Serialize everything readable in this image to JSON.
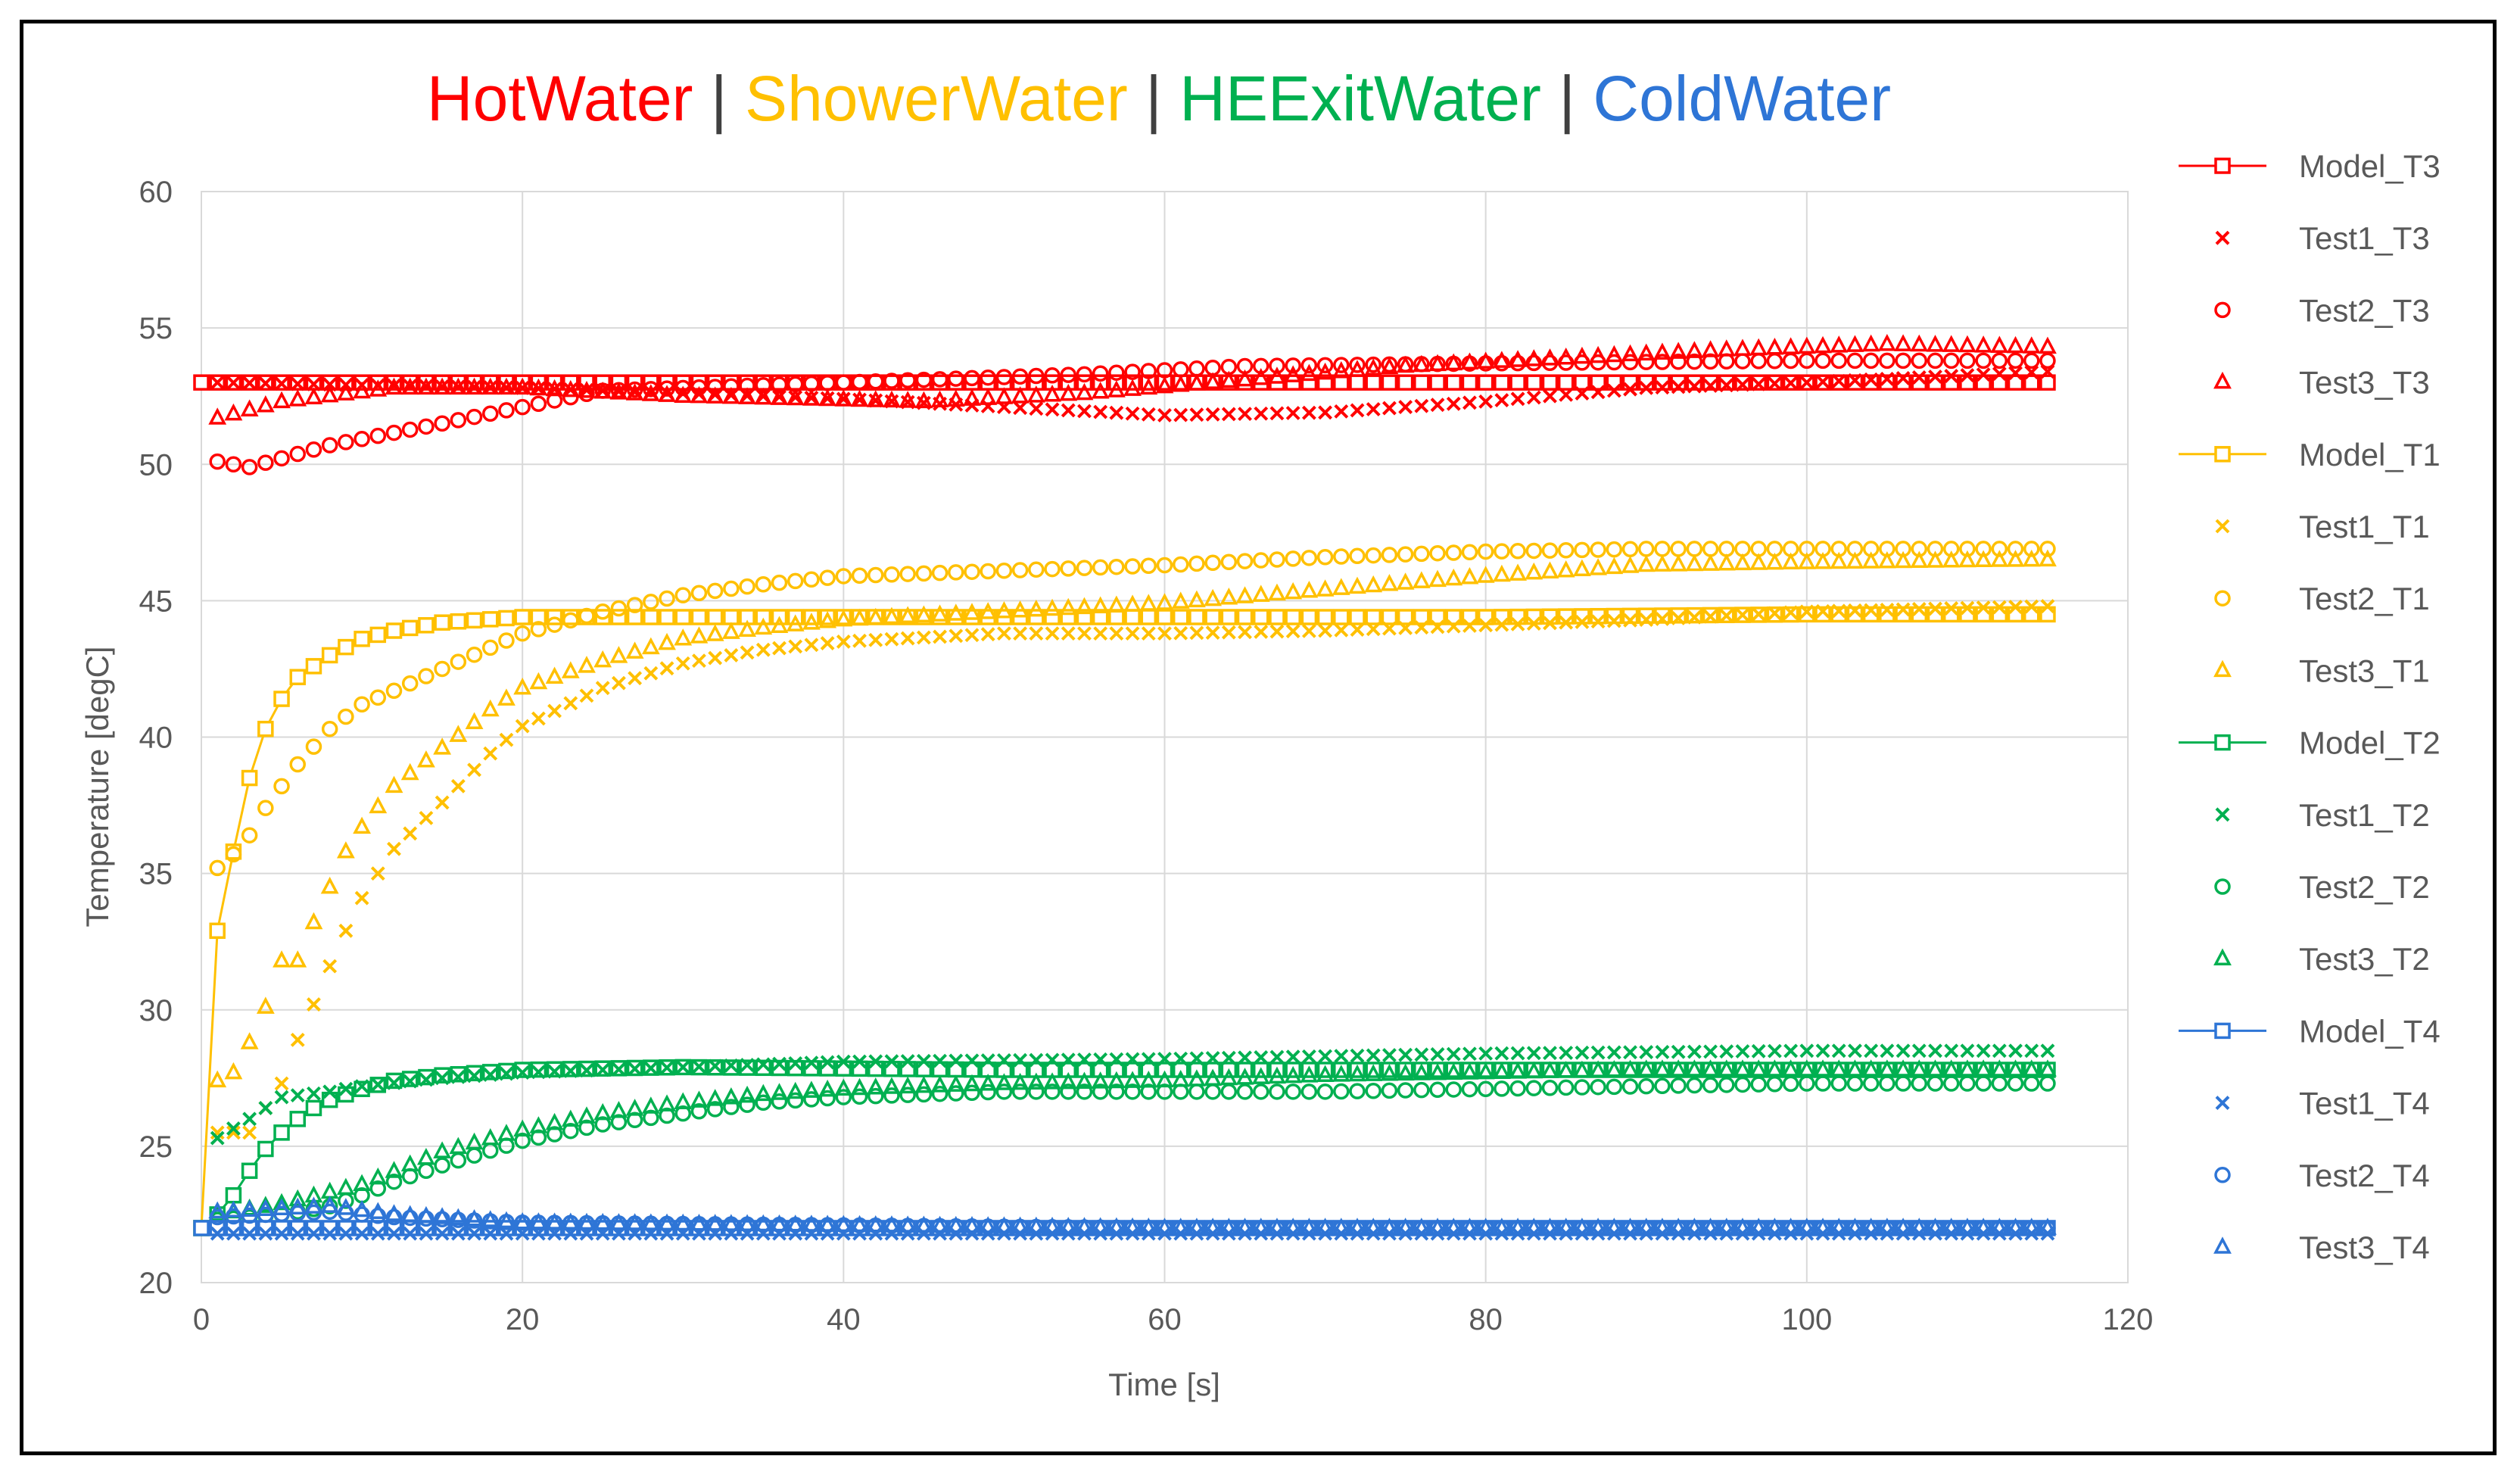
{
  "chart_data": {
    "type": "scatter",
    "title_parts": [
      {
        "text": "HotWater",
        "color": "#FF0000"
      },
      {
        "text": "ShowerWater",
        "color": "#FFC000"
      },
      {
        "text": "HEExitWater",
        "color": "#00B050"
      },
      {
        "text": "ColdWater",
        "color": "#2E75D6"
      }
    ],
    "title_separator": "|",
    "xlabel": "Time [s]",
    "ylabel": "Temperature [degC]",
    "xlim": [
      0,
      120
    ],
    "ylim": [
      20,
      60
    ],
    "xticks": [
      0,
      20,
      40,
      60,
      80,
      100,
      120
    ],
    "yticks": [
      20,
      25,
      30,
      35,
      40,
      45,
      50,
      55,
      60
    ],
    "grid": true,
    "legend_position": "right",
    "x_samples": {
      "start": 1,
      "end": 115,
      "step": 1
    },
    "series": [
      {
        "name": "Model_T3",
        "color": "#FF0000",
        "marker": "square",
        "line": true,
        "keypoints": [
          [
            0,
            53.0
          ],
          [
            20,
            53.0
          ],
          [
            60,
            53.0
          ],
          [
            115,
            53.0
          ]
        ]
      },
      {
        "name": "Test1_T3",
        "color": "#FF0000",
        "marker": "x",
        "line": false,
        "keypoints": [
          [
            1,
            53.0
          ],
          [
            20,
            52.8
          ],
          [
            40,
            52.4
          ],
          [
            50,
            52.1
          ],
          [
            60,
            51.8
          ],
          [
            70,
            51.9
          ],
          [
            80,
            52.3
          ],
          [
            90,
            52.8
          ],
          [
            100,
            53.0
          ],
          [
            115,
            53.4
          ]
        ]
      },
      {
        "name": "Test2_T3",
        "color": "#FF0000",
        "marker": "circle",
        "line": false,
        "keypoints": [
          [
            1,
            50.1
          ],
          [
            3,
            49.9
          ],
          [
            8,
            50.7
          ],
          [
            15,
            51.5
          ],
          [
            20,
            52.1
          ],
          [
            25,
            52.7
          ],
          [
            40,
            53.0
          ],
          [
            55,
            53.3
          ],
          [
            65,
            53.6
          ],
          [
            80,
            53.7
          ],
          [
            100,
            53.8
          ],
          [
            115,
            53.8
          ]
        ]
      },
      {
        "name": "Test3_T3",
        "color": "#FF0000",
        "marker": "triangle",
        "line": false,
        "keypoints": [
          [
            1,
            51.7
          ],
          [
            5,
            52.3
          ],
          [
            12,
            52.8
          ],
          [
            20,
            52.8
          ],
          [
            30,
            52.5
          ],
          [
            45,
            52.3
          ],
          [
            55,
            52.6
          ],
          [
            65,
            53.1
          ],
          [
            75,
            53.6
          ],
          [
            85,
            53.9
          ],
          [
            95,
            54.2
          ],
          [
            105,
            54.4
          ],
          [
            115,
            54.3
          ]
        ]
      },
      {
        "name": "Model_T1",
        "color": "#FFC000",
        "marker": "square",
        "line": true,
        "keypoints": [
          [
            0,
            22.0
          ],
          [
            1,
            32.9
          ],
          [
            2,
            35.8
          ],
          [
            3,
            38.5
          ],
          [
            4,
            40.3
          ],
          [
            5,
            41.4
          ],
          [
            6,
            42.2
          ],
          [
            8,
            43.0
          ],
          [
            10,
            43.6
          ],
          [
            12,
            43.9
          ],
          [
            15,
            44.2
          ],
          [
            20,
            44.4
          ],
          [
            40,
            44.4
          ],
          [
            60,
            44.4
          ],
          [
            80,
            44.4
          ],
          [
            100,
            44.5
          ],
          [
            115,
            44.5
          ]
        ]
      },
      {
        "name": "Test1_T1",
        "color": "#FFC000",
        "marker": "x",
        "line": false,
        "keypoints": [
          [
            1,
            25.5
          ],
          [
            3,
            25.5
          ],
          [
            5,
            27.3
          ],
          [
            6,
            28.9
          ],
          [
            7,
            30.2
          ],
          [
            8,
            31.6
          ],
          [
            9,
            32.9
          ],
          [
            10,
            34.1
          ],
          [
            12,
            35.9
          ],
          [
            15,
            37.6
          ],
          [
            18,
            39.4
          ],
          [
            20,
            40.4
          ],
          [
            25,
            41.8
          ],
          [
            30,
            42.7
          ],
          [
            35,
            43.2
          ],
          [
            40,
            43.5
          ],
          [
            50,
            43.8
          ],
          [
            60,
            43.8
          ],
          [
            70,
            43.9
          ],
          [
            80,
            44.1
          ],
          [
            90,
            44.3
          ],
          [
            100,
            44.6
          ],
          [
            115,
            44.8
          ]
        ]
      },
      {
        "name": "Test2_T1",
        "color": "#FFC000",
        "marker": "circle",
        "line": false,
        "keypoints": [
          [
            1,
            35.2
          ],
          [
            2,
            35.7
          ],
          [
            3,
            36.4
          ],
          [
            4,
            37.4
          ],
          [
            5,
            38.2
          ],
          [
            6,
            39.0
          ],
          [
            8,
            40.3
          ],
          [
            10,
            41.2
          ],
          [
            12,
            41.7
          ],
          [
            15,
            42.5
          ],
          [
            20,
            43.8
          ],
          [
            25,
            44.6
          ],
          [
            30,
            45.2
          ],
          [
            35,
            45.6
          ],
          [
            40,
            45.9
          ],
          [
            50,
            46.1
          ],
          [
            60,
            46.3
          ],
          [
            70,
            46.6
          ],
          [
            80,
            46.8
          ],
          [
            90,
            46.9
          ],
          [
            100,
            46.9
          ],
          [
            115,
            46.9
          ]
        ]
      },
      {
        "name": "Test3_T1",
        "color": "#FFC000",
        "marker": "triangle",
        "line": false,
        "keypoints": [
          [
            1,
            27.4
          ],
          [
            2,
            27.7
          ],
          [
            3,
            28.8
          ],
          [
            4,
            30.1
          ],
          [
            5,
            31.8
          ],
          [
            6,
            31.8
          ],
          [
            7,
            33.2
          ],
          [
            8,
            34.5
          ],
          [
            9,
            35.8
          ],
          [
            10,
            36.7
          ],
          [
            12,
            38.2
          ],
          [
            15,
            39.6
          ],
          [
            18,
            41.0
          ],
          [
            20,
            41.8
          ],
          [
            25,
            42.8
          ],
          [
            30,
            43.6
          ],
          [
            35,
            44.0
          ],
          [
            40,
            44.3
          ],
          [
            50,
            44.6
          ],
          [
            60,
            44.9
          ],
          [
            70,
            45.4
          ],
          [
            80,
            45.9
          ],
          [
            90,
            46.3
          ],
          [
            100,
            46.4
          ],
          [
            115,
            46.5
          ]
        ]
      },
      {
        "name": "Model_T2",
        "color": "#00B050",
        "marker": "square",
        "line": true,
        "keypoints": [
          [
            0,
            22.0
          ],
          [
            1,
            22.5
          ],
          [
            2,
            23.2
          ],
          [
            3,
            24.1
          ],
          [
            4,
            24.9
          ],
          [
            5,
            25.5
          ],
          [
            6,
            26.0
          ],
          [
            7,
            26.4
          ],
          [
            8,
            26.7
          ],
          [
            10,
            27.1
          ],
          [
            12,
            27.4
          ],
          [
            15,
            27.6
          ],
          [
            20,
            27.8
          ],
          [
            30,
            27.9
          ],
          [
            50,
            27.8
          ],
          [
            80,
            27.8
          ],
          [
            115,
            27.8
          ]
        ]
      },
      {
        "name": "Test1_T2",
        "color": "#00B050",
        "marker": "x",
        "line": false,
        "keypoints": [
          [
            1,
            25.3
          ],
          [
            3,
            26.0
          ],
          [
            5,
            26.8
          ],
          [
            8,
            27.0
          ],
          [
            10,
            27.2
          ],
          [
            15,
            27.5
          ],
          [
            20,
            27.7
          ],
          [
            30,
            27.9
          ],
          [
            40,
            28.1
          ],
          [
            60,
            28.2
          ],
          [
            80,
            28.4
          ],
          [
            100,
            28.5
          ],
          [
            115,
            28.5
          ]
        ]
      },
      {
        "name": "Test2_T2",
        "color": "#00B050",
        "marker": "circle",
        "line": false,
        "keypoints": [
          [
            1,
            22.3
          ],
          [
            5,
            22.5
          ],
          [
            8,
            22.8
          ],
          [
            10,
            23.2
          ],
          [
            12,
            23.7
          ],
          [
            15,
            24.3
          ],
          [
            20,
            25.2
          ],
          [
            25,
            25.8
          ],
          [
            30,
            26.2
          ],
          [
            35,
            26.6
          ],
          [
            40,
            26.8
          ],
          [
            50,
            27.0
          ],
          [
            60,
            27.0
          ],
          [
            70,
            27.0
          ],
          [
            80,
            27.1
          ],
          [
            90,
            27.2
          ],
          [
            100,
            27.3
          ],
          [
            115,
            27.3
          ]
        ]
      },
      {
        "name": "Test3_T2",
        "color": "#00B050",
        "marker": "triangle",
        "line": false,
        "keypoints": [
          [
            1,
            22.5
          ],
          [
            5,
            22.9
          ],
          [
            10,
            23.6
          ],
          [
            15,
            24.8
          ],
          [
            20,
            25.6
          ],
          [
            25,
            26.2
          ],
          [
            30,
            26.6
          ],
          [
            35,
            26.9
          ],
          [
            40,
            27.1
          ],
          [
            50,
            27.3
          ],
          [
            60,
            27.4
          ],
          [
            70,
            27.6
          ],
          [
            80,
            27.7
          ],
          [
            90,
            27.8
          ],
          [
            100,
            27.8
          ],
          [
            115,
            27.8
          ]
        ]
      },
      {
        "name": "Model_T4",
        "color": "#2E75D6",
        "marker": "square",
        "line": true,
        "keypoints": [
          [
            0,
            22.0
          ],
          [
            115,
            22.0
          ]
        ]
      },
      {
        "name": "Test1_T4",
        "color": "#2E75D6",
        "marker": "x",
        "line": false,
        "keypoints": [
          [
            1,
            21.8
          ],
          [
            115,
            21.8
          ]
        ]
      },
      {
        "name": "Test2_T4",
        "color": "#2E75D6",
        "marker": "circle",
        "line": false,
        "keypoints": [
          [
            1,
            22.4
          ],
          [
            8,
            22.6
          ],
          [
            12,
            22.4
          ],
          [
            20,
            22.2
          ],
          [
            40,
            22.1
          ],
          [
            60,
            22.0
          ],
          [
            115,
            22.0
          ]
        ]
      },
      {
        "name": "Test3_T4",
        "color": "#2E75D6",
        "marker": "triangle",
        "line": false,
        "keypoints": [
          [
            1,
            22.6
          ],
          [
            8,
            22.8
          ],
          [
            12,
            22.5
          ],
          [
            20,
            22.2
          ],
          [
            40,
            22.1
          ],
          [
            60,
            22.0
          ],
          [
            115,
            22.0
          ]
        ]
      }
    ]
  }
}
